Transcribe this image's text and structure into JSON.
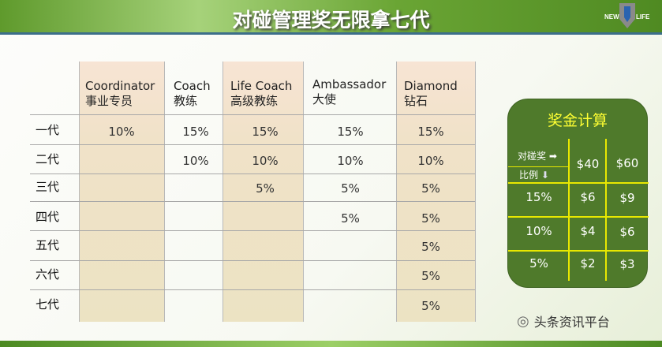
{
  "title": "对碰管理奖无限拿七代",
  "logo_text": "NEW U LIFE",
  "columns": [
    {
      "en": "Coordinator",
      "zh": "事业专员"
    },
    {
      "en": "Coach",
      "zh": "教练"
    },
    {
      "en": "Life Coach",
      "zh": "高级教练"
    },
    {
      "en": "Ambassador",
      "zh": "大使"
    },
    {
      "en": "Diamond",
      "zh": "钻石"
    }
  ],
  "rows": [
    {
      "label": "一代",
      "values": [
        "10%",
        "15%",
        "15%",
        "15%",
        "15%"
      ]
    },
    {
      "label": "二代",
      "values": [
        "",
        "10%",
        "10%",
        "10%",
        "10%"
      ]
    },
    {
      "label": "三代",
      "values": [
        "",
        "",
        "5%",
        "5%",
        "5%"
      ]
    },
    {
      "label": "四代",
      "values": [
        "",
        "",
        "",
        "5%",
        "5%"
      ]
    },
    {
      "label": "五代",
      "values": [
        "",
        "",
        "",
        "",
        "5%"
      ]
    },
    {
      "label": "六代",
      "values": [
        "",
        "",
        "",
        "",
        "5%"
      ]
    },
    {
      "label": "七代",
      "values": [
        "",
        "",
        "",
        "",
        "5%"
      ]
    }
  ],
  "calc": {
    "title": "奖金计算",
    "corner_top": "对碰奖",
    "corner_bottom": "比例",
    "headers": [
      "$40",
      "$60"
    ],
    "rows": [
      {
        "rate": "15%",
        "values": [
          "$6",
          "$9"
        ]
      },
      {
        "rate": "10%",
        "values": [
          "$4",
          "$6"
        ]
      },
      {
        "rate": "5%",
        "values": [
          "$2",
          "$3"
        ]
      }
    ]
  },
  "watermark": "头条资讯平台",
  "colors": {
    "panel": "#4f7a2b",
    "panel_lines": "#e8e800",
    "panel_title": "#ffff33"
  }
}
